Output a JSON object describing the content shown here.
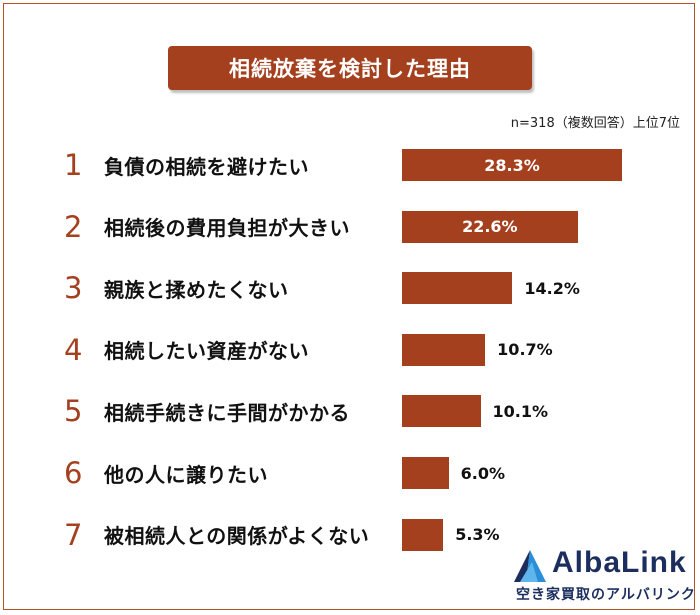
{
  "title": "相続放棄を検討した理由",
  "note": "n=318（複数回答）上位7位",
  "chart_data": {
    "type": "bar",
    "orientation": "horizontal",
    "title": "相続放棄を検討した理由",
    "categories": [
      "負債の相続を避けたい",
      "相続後の費用負担が大きい",
      "親族と揉めたくない",
      "相続したい資産がない",
      "相続手続きに手間がかかる",
      "他の人に譲りたい",
      "被相続人との関係がよくない"
    ],
    "ranks": [
      "1",
      "2",
      "3",
      "4",
      "5",
      "6",
      "7"
    ],
    "values": [
      28.3,
      22.6,
      14.2,
      10.7,
      10.1,
      6.0,
      5.3
    ],
    "value_labels": [
      "28.3%",
      "22.6%",
      "14.2%",
      "10.7%",
      "10.1%",
      "6.0%",
      "5.3%"
    ],
    "unit": "%",
    "grid": false,
    "bar_color": "#a5401f"
  },
  "logo": {
    "name": "AlbaLink",
    "tagline": "空き家買取のアルバリンク",
    "colors": [
      "#1b2e5e",
      "#2a8fd8"
    ]
  }
}
